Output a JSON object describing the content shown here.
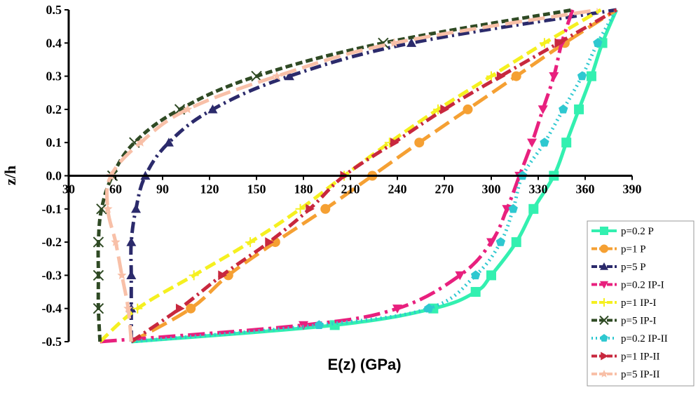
{
  "chart_data": {
    "type": "line",
    "title": "",
    "xlabel": "E(z) (GPa)",
    "ylabel": "z/h",
    "xlim": [
      30,
      390
    ],
    "ylim": [
      -0.5,
      0.5
    ],
    "xticks": [
      "30",
      "60",
      "90",
      "120",
      "150",
      "180",
      "210",
      "240",
      "270",
      "300",
      "330",
      "360",
      "390"
    ],
    "yticks": [
      "0.5",
      "0.4",
      "0.3",
      "0.2",
      "0.1",
      "0.0",
      "-0.1",
      "-0.2",
      "-0.3",
      "-0.4",
      "-0.5"
    ],
    "grid": false,
    "legend_position": "bottom-right",
    "series": [
      {
        "name": "p=0.2 P",
        "color": "#33f0b0",
        "dash": "solid",
        "marker": "square",
        "points": [
          [
            70,
            -0.5
          ],
          [
            200,
            -0.45
          ],
          [
            263,
            -0.4
          ],
          [
            290,
            -0.35
          ],
          [
            300,
            -0.3
          ],
          [
            316,
            -0.2
          ],
          [
            327,
            -0.1
          ],
          [
            340,
            0.0
          ],
          [
            348,
            0.1
          ],
          [
            356,
            0.2
          ],
          [
            364,
            0.3
          ],
          [
            371,
            0.4
          ],
          [
            380,
            0.5
          ]
        ]
      },
      {
        "name": "p=1 P",
        "color": "#f5a033",
        "dash": "longdash",
        "marker": "circle",
        "points": [
          [
            70,
            -0.5
          ],
          [
            108,
            -0.4
          ],
          [
            132,
            -0.3
          ],
          [
            162,
            -0.2
          ],
          [
            194,
            -0.1
          ],
          [
            224,
            0.0
          ],
          [
            254,
            0.1
          ],
          [
            285,
            0.2
          ],
          [
            316,
            0.3
          ],
          [
            347,
            0.4
          ],
          [
            380,
            0.5
          ]
        ]
      },
      {
        "name": "p=5 P",
        "color": "#2b2a6b",
        "dash": "dashdot",
        "marker": "triangle-up",
        "points": [
          [
            70,
            -0.5
          ],
          [
            70,
            -0.4
          ],
          [
            70,
            -0.3
          ],
          [
            70,
            -0.2
          ],
          [
            73,
            -0.1
          ],
          [
            79,
            0.0
          ],
          [
            94,
            0.1
          ],
          [
            122,
            0.2
          ],
          [
            171,
            0.3
          ],
          [
            249,
            0.4
          ],
          [
            380,
            0.5
          ]
        ]
      },
      {
        "name": "p=0.2  IP-I",
        "color": "#e8207e",
        "dash": "longdashdot",
        "marker": "triangle-down",
        "points": [
          [
            50,
            -0.5
          ],
          [
            180,
            -0.45
          ],
          [
            240,
            -0.4
          ],
          [
            280,
            -0.3
          ],
          [
            300,
            -0.2
          ],
          [
            310,
            -0.1
          ],
          [
            318,
            0.0
          ],
          [
            326,
            0.1
          ],
          [
            333,
            0.2
          ],
          [
            340,
            0.3
          ],
          [
            345,
            0.4
          ],
          [
            352,
            0.5
          ]
        ]
      },
      {
        "name": "p=1  IP-I",
        "color": "#f5f020",
        "dash": "dash",
        "marker": "plus",
        "points": [
          [
            50,
            -0.5
          ],
          [
            74,
            -0.4
          ],
          [
            110,
            -0.3
          ],
          [
            146,
            -0.2
          ],
          [
            178,
            -0.1
          ],
          [
            206,
            0.0
          ],
          [
            235,
            0.1
          ],
          [
            266,
            0.2
          ],
          [
            300,
            0.3
          ],
          [
            334,
            0.4
          ],
          [
            370,
            0.5
          ]
        ]
      },
      {
        "name": "p=5  IP-I",
        "color": "#2f4a24",
        "dash": "shortdash",
        "marker": "x",
        "points": [
          [
            50,
            -0.5
          ],
          [
            49,
            -0.4
          ],
          [
            49,
            -0.3
          ],
          [
            49,
            -0.2
          ],
          [
            51,
            -0.1
          ],
          [
            58,
            0.0
          ],
          [
            72,
            0.1
          ],
          [
            101,
            0.2
          ],
          [
            150,
            0.3
          ],
          [
            231,
            0.4
          ],
          [
            352,
            0.5
          ]
        ]
      },
      {
        "name": "p=0.2  IP-II",
        "color": "#2ec8d0",
        "dash": "dot",
        "marker": "pentagon",
        "points": [
          [
            70,
            -0.5
          ],
          [
            190,
            -0.45
          ],
          [
            260,
            -0.4
          ],
          [
            290,
            -0.3
          ],
          [
            306,
            -0.2
          ],
          [
            314,
            -0.1
          ],
          [
            320,
            0.0
          ],
          [
            334,
            0.1
          ],
          [
            346,
            0.2
          ],
          [
            358,
            0.3
          ],
          [
            368,
            0.4
          ],
          [
            380,
            0.5
          ]
        ]
      },
      {
        "name": "p=1  IP-II",
        "color": "#c8283e",
        "dash": "dashdot",
        "marker": "triangle-right",
        "points": [
          [
            70,
            -0.5
          ],
          [
            101,
            -0.4
          ],
          [
            128,
            -0.3
          ],
          [
            158,
            -0.2
          ],
          [
            184,
            -0.1
          ],
          [
            206,
            0.0
          ],
          [
            238,
            0.1
          ],
          [
            270,
            0.2
          ],
          [
            306,
            0.3
          ],
          [
            343,
            0.4
          ],
          [
            380,
            0.5
          ]
        ]
      },
      {
        "name": "p=5  IP-II",
        "color": "#f8c0a8",
        "dash": "longdash",
        "marker": "star",
        "points": [
          [
            70,
            -0.5
          ],
          [
            68,
            -0.4
          ],
          [
            64,
            -0.3
          ],
          [
            60,
            -0.2
          ],
          [
            55,
            -0.1
          ],
          [
            57,
            0.0
          ],
          [
            76,
            0.1
          ],
          [
            106,
            0.2
          ],
          [
            163,
            0.3
          ],
          [
            238,
            0.4
          ],
          [
            368,
            0.5
          ]
        ]
      }
    ]
  }
}
